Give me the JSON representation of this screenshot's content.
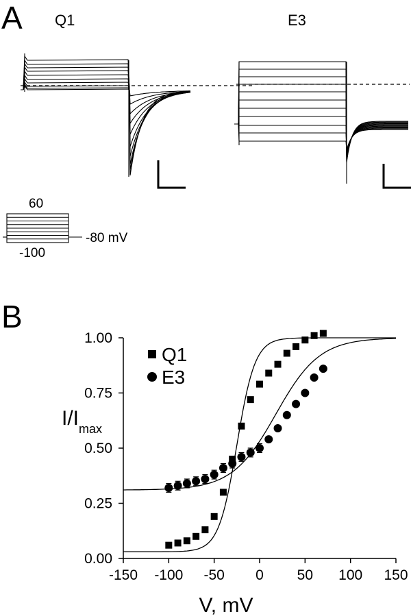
{
  "panel_a": {
    "letter": "A",
    "traces": [
      {
        "title": "Q1"
      },
      {
        "title": "E3"
      }
    ],
    "protocol": {
      "top_label": "60",
      "bottom_label": "-100",
      "holding_label": "-80 mV"
    }
  },
  "panel_b": {
    "letter": "B"
  },
  "chart_data": {
    "type": "scatter",
    "title": "",
    "xlabel": "V, mV",
    "ylabel_main": "I/I",
    "ylabel_sub": "max",
    "xlim": [
      -150,
      150
    ],
    "ylim": [
      0,
      1.0
    ],
    "xticks": [
      -150,
      -100,
      -50,
      0,
      50,
      100,
      150
    ],
    "xtick_labels": [
      "-150",
      "-100",
      "-50",
      "0",
      "50",
      "100",
      "150"
    ],
    "yticks": [
      0,
      0.25,
      0.5,
      0.75,
      1.0
    ],
    "ytick_labels": [
      "0.00",
      "0.25",
      "0.50",
      "0.75",
      "1.00"
    ],
    "legend_position": "top-left",
    "series": [
      {
        "name": "Q1",
        "marker": "square",
        "x": [
          -100,
          -90,
          -80,
          -70,
          -60,
          -50,
          -40,
          -30,
          -20,
          -10,
          0,
          10,
          20,
          30,
          40,
          50,
          60,
          70
        ],
        "y": [
          0.06,
          0.07,
          0.08,
          0.1,
          0.13,
          0.19,
          0.3,
          0.45,
          0.6,
          0.72,
          0.79,
          0.84,
          0.88,
          0.93,
          0.96,
          0.99,
          1.01,
          1.02
        ],
        "fit": {
          "bottom": 0.03,
          "top": 1.0,
          "v_half": -25,
          "slope": 10
        }
      },
      {
        "name": "E3",
        "marker": "circle",
        "x": [
          -100,
          -90,
          -80,
          -70,
          -60,
          -50,
          -40,
          -30,
          -20,
          -10,
          0,
          10,
          20,
          30,
          40,
          50,
          60,
          70
        ],
        "y": [
          0.32,
          0.33,
          0.34,
          0.35,
          0.36,
          0.38,
          0.41,
          0.43,
          0.46,
          0.48,
          0.5,
          0.54,
          0.59,
          0.65,
          0.7,
          0.75,
          0.82,
          0.86
        ],
        "error": [
          0.02,
          0.02,
          0.02,
          0.02,
          0.02,
          0.02,
          0.02,
          0.02,
          0.02,
          0.02,
          0.02,
          0.0,
          0.0,
          0.0,
          0.0,
          0.0,
          0.0,
          0.0
        ],
        "fit": {
          "bottom": 0.31,
          "top": 1.0,
          "v_half": 18,
          "slope": 24
        }
      }
    ]
  }
}
